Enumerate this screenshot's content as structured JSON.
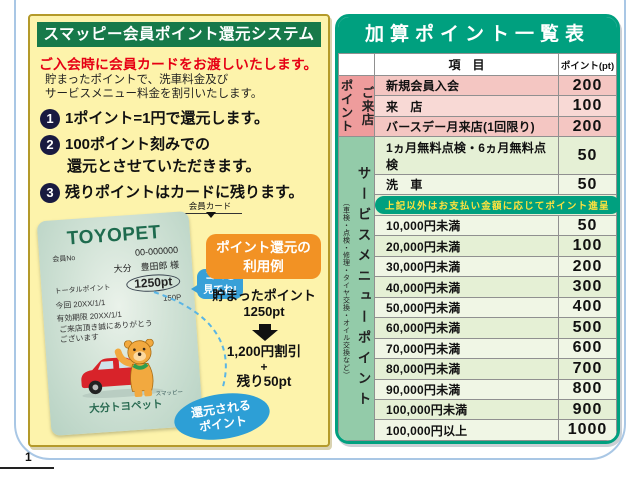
{
  "page": {
    "page_number": "1"
  },
  "colors": {
    "frame_blue": "#a9c7e5",
    "panel_yellow": "#fdf3ab",
    "title_green": "#17794a",
    "table_teal": "#00a07f",
    "alert_red": "#e60014",
    "example_orange": "#f29224",
    "bubble_blue": "#38a0d8",
    "returned_blue": "#2d9fd6",
    "visit_group_pink": "#ee9c9c",
    "service_group_green": "#93cba9",
    "notice_text_yellow": "#ffe23e"
  },
  "left_panel": {
    "title": "スマッピー会員ポイント還元システム",
    "subtitle_red": "ご入会時に会員カードをお渡しいたします。",
    "subtitle_lines": [
      "貯まったポイントで、洗車料金及び",
      "サービスメニュー料金を割引いたします。"
    ],
    "rules": [
      {
        "num": "1",
        "lines": [
          "1ポイント=1円で還元します。"
        ]
      },
      {
        "num": "2",
        "lines": [
          "100ポイント刻みでの",
          "還元とさせていただきます。"
        ]
      },
      {
        "num": "3",
        "lines": [
          "残りポイントはカードに残ります。"
        ]
      }
    ],
    "card_label": "会員カード",
    "card": {
      "brand": "TOYOPET",
      "member_no_label": "会員No",
      "member_no": "00-000000",
      "member_name": "大分　豊田郎 様",
      "total_label": "トータルポイント",
      "total_points": "1250pt",
      "current_label": "今回 20XX/1/1",
      "current_points": "150P",
      "expiry": "有効期限 20XX/1/1",
      "thanks": [
        "ご来店頂き誠にありがとう",
        "ございます"
      ],
      "mascot_name": "スマッピー",
      "dealer": "大分トヨペット"
    },
    "look_here_bubble": [
      "ココを",
      "見てね!"
    ],
    "example": {
      "title_lines": [
        "ポイント還元の",
        "利用例"
      ],
      "accum_lines": [
        "貯まったポイント",
        "1250pt"
      ],
      "result_lines": [
        "1,200円割引",
        "+",
        "残り50pt"
      ]
    },
    "returned_ellipse": [
      "還元される",
      "ポイント"
    ]
  },
  "right_panel": {
    "title": "加算ポイント一覧表",
    "col_item": "項　目",
    "col_points": "ポイント(pt)",
    "groups": [
      {
        "id": "visit",
        "label_main": "ご来店",
        "label_sub": "ポイント"
      },
      {
        "id": "service",
        "label_main": "サービスメニューポイント",
        "label_sub": "（車検・点検・修理・タイヤ交換・オイル交換など）"
      }
    ],
    "notice": "上記以外はお支払い金額に応じてポイント進呈",
    "notice_cls": "g0",
    "rows": [
      {
        "item": "新規会員入会",
        "points": "200",
        "cls": "p0"
      },
      {
        "item": "来　店",
        "points": "100",
        "cls": "p1"
      },
      {
        "item": "バースデー月来店(1回限り)",
        "points": "200",
        "cls": "p0"
      },
      {
        "item": "1ヵ月無料点検・6ヵ月無料点検",
        "points": "50",
        "cls": "g0"
      },
      {
        "item": "洗　車",
        "points": "50",
        "cls": "g1"
      },
      {
        "item": "10,000円未満",
        "points": "50",
        "cls": "g1"
      },
      {
        "item": "20,000円未満",
        "points": "100",
        "cls": "g0"
      },
      {
        "item": "30,000円未満",
        "points": "200",
        "cls": "g1"
      },
      {
        "item": "40,000円未満",
        "points": "300",
        "cls": "g0"
      },
      {
        "item": "50,000円未満",
        "points": "400",
        "cls": "g1"
      },
      {
        "item": "60,000円未満",
        "points": "500",
        "cls": "g0"
      },
      {
        "item": "70,000円未満",
        "points": "600",
        "cls": "g1"
      },
      {
        "item": "80,000円未満",
        "points": "700",
        "cls": "g0"
      },
      {
        "item": "90,000円未満",
        "points": "800",
        "cls": "g1"
      },
      {
        "item": "100,000円未満",
        "points": "900",
        "cls": "g0"
      },
      {
        "item": "100,000円以上",
        "points": "1000",
        "cls": "g1"
      }
    ]
  }
}
